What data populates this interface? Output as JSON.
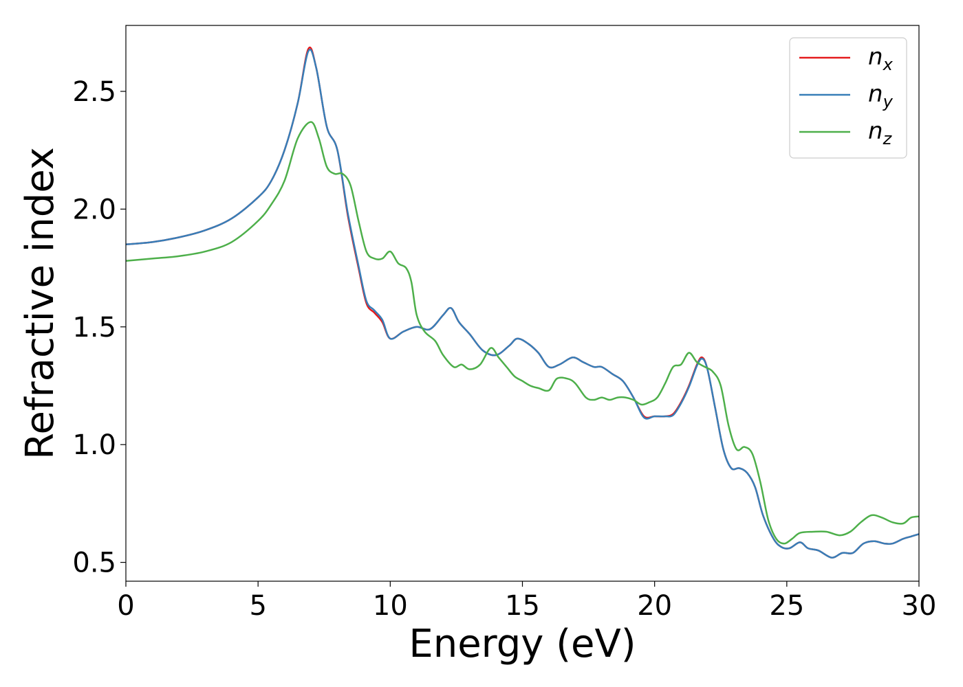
{
  "chart_data": {
    "type": "line",
    "xlabel": "Energy (eV)",
    "ylabel": "Refractive index",
    "xlim": [
      0,
      30
    ],
    "ylim": [
      0.42,
      2.78
    ],
    "xticks": [
      0,
      5,
      10,
      15,
      20,
      25,
      30
    ],
    "xtick_labels": [
      "0",
      "5",
      "10",
      "15",
      "20",
      "25",
      "30"
    ],
    "yticks": [
      0.5,
      1.0,
      1.5,
      2.0,
      2.5
    ],
    "ytick_labels": [
      "0.5",
      "1.0",
      "1.5",
      "2.0",
      "2.5"
    ],
    "grid": false,
    "legend_position": "top-right",
    "series": [
      {
        "name": "n",
        "sub": "x",
        "color": "#e41a1c",
        "x": [
          0,
          1,
          2,
          3,
          4,
          5,
          5.5,
          6,
          6.5,
          6.9,
          7.2,
          7.6,
          8.0,
          8.4,
          8.8,
          9.1,
          9.4,
          9.7,
          10.0,
          10.5,
          11.0,
          11.5,
          12.0,
          12.3,
          12.6,
          13.0,
          13.5,
          14.0,
          14.5,
          14.8,
          15.2,
          15.6,
          16.0,
          16.4,
          16.9,
          17.3,
          17.7,
          18.0,
          18.4,
          18.8,
          19.2,
          19.6,
          20.0,
          20.4,
          20.7,
          21.0,
          21.3,
          21.6,
          21.8,
          22.0,
          22.3,
          22.6,
          22.9,
          23.2,
          23.5,
          23.8,
          24.1,
          24.5,
          24.8,
          25.1,
          25.5,
          25.8,
          26.2,
          26.7,
          27.1,
          27.5,
          27.9,
          28.3,
          28.7,
          29.0,
          29.4,
          29.7,
          30.0
        ],
        "y": [
          1.85,
          1.86,
          1.88,
          1.91,
          1.96,
          2.05,
          2.12,
          2.25,
          2.45,
          2.68,
          2.6,
          2.35,
          2.25,
          1.97,
          1.75,
          1.6,
          1.56,
          1.52,
          1.45,
          1.48,
          1.5,
          1.49,
          1.55,
          1.58,
          1.52,
          1.47,
          1.4,
          1.38,
          1.42,
          1.45,
          1.43,
          1.39,
          1.33,
          1.34,
          1.37,
          1.35,
          1.33,
          1.33,
          1.3,
          1.27,
          1.2,
          1.12,
          1.12,
          1.12,
          1.13,
          1.18,
          1.25,
          1.34,
          1.37,
          1.32,
          1.15,
          0.98,
          0.9,
          0.9,
          0.88,
          0.82,
          0.7,
          0.6,
          0.565,
          0.56,
          0.585,
          0.56,
          0.55,
          0.52,
          0.54,
          0.54,
          0.58,
          0.59,
          0.58,
          0.58,
          0.6,
          0.61,
          0.62
        ]
      },
      {
        "name": "n",
        "sub": "y",
        "color": "#377eb8",
        "x": [
          0,
          1,
          2,
          3,
          4,
          5,
          5.5,
          6,
          6.5,
          6.9,
          7.2,
          7.6,
          8.0,
          8.4,
          8.8,
          9.1,
          9.4,
          9.7,
          10.0,
          10.5,
          11.0,
          11.5,
          12.0,
          12.3,
          12.6,
          13.0,
          13.5,
          14.0,
          14.5,
          14.8,
          15.2,
          15.6,
          16.0,
          16.4,
          16.9,
          17.3,
          17.7,
          18.0,
          18.4,
          18.8,
          19.2,
          19.6,
          20.0,
          20.4,
          20.7,
          21.0,
          21.3,
          21.6,
          21.8,
          22.0,
          22.3,
          22.6,
          22.9,
          23.2,
          23.5,
          23.8,
          24.1,
          24.5,
          24.8,
          25.1,
          25.5,
          25.8,
          26.2,
          26.7,
          27.1,
          27.5,
          27.9,
          28.3,
          28.7,
          29.0,
          29.4,
          29.7,
          30.0
        ],
        "y": [
          1.85,
          1.86,
          1.88,
          1.91,
          1.96,
          2.05,
          2.12,
          2.25,
          2.45,
          2.67,
          2.6,
          2.35,
          2.25,
          1.98,
          1.76,
          1.61,
          1.57,
          1.53,
          1.45,
          1.48,
          1.5,
          1.49,
          1.55,
          1.58,
          1.52,
          1.47,
          1.4,
          1.38,
          1.42,
          1.45,
          1.43,
          1.39,
          1.33,
          1.34,
          1.37,
          1.35,
          1.33,
          1.33,
          1.3,
          1.27,
          1.2,
          1.115,
          1.12,
          1.12,
          1.125,
          1.175,
          1.245,
          1.335,
          1.365,
          1.32,
          1.15,
          0.98,
          0.9,
          0.9,
          0.88,
          0.82,
          0.7,
          0.6,
          0.565,
          0.56,
          0.585,
          0.56,
          0.55,
          0.52,
          0.54,
          0.54,
          0.58,
          0.59,
          0.58,
          0.58,
          0.6,
          0.61,
          0.62
        ]
      },
      {
        "name": "n",
        "sub": "z",
        "color": "#4daf4a",
        "x": [
          0,
          1,
          2,
          3,
          4,
          5,
          5.5,
          6,
          6.5,
          7.0,
          7.3,
          7.6,
          7.9,
          8.2,
          8.5,
          8.8,
          9.1,
          9.4,
          9.7,
          10.0,
          10.3,
          10.6,
          10.8,
          11.0,
          11.3,
          11.7,
          12.0,
          12.4,
          12.7,
          13.0,
          13.4,
          13.8,
          14.1,
          14.4,
          14.7,
          15.0,
          15.3,
          15.6,
          16.0,
          16.3,
          16.7,
          17.0,
          17.4,
          17.7,
          18.0,
          18.3,
          18.6,
          18.9,
          19.2,
          19.5,
          19.8,
          20.1,
          20.4,
          20.7,
          21.0,
          21.3,
          21.6,
          21.9,
          22.2,
          22.5,
          22.8,
          23.1,
          23.4,
          23.7,
          24.0,
          24.3,
          24.6,
          24.9,
          25.2,
          25.5,
          26.0,
          26.5,
          27.0,
          27.4,
          27.8,
          28.2,
          28.6,
          29.0,
          29.4,
          29.7,
          30.0
        ],
        "y": [
          1.78,
          1.79,
          1.8,
          1.82,
          1.86,
          1.95,
          2.02,
          2.12,
          2.3,
          2.37,
          2.3,
          2.18,
          2.15,
          2.15,
          2.1,
          1.95,
          1.82,
          1.79,
          1.79,
          1.82,
          1.77,
          1.75,
          1.69,
          1.55,
          1.48,
          1.44,
          1.38,
          1.33,
          1.34,
          1.32,
          1.34,
          1.41,
          1.37,
          1.33,
          1.29,
          1.27,
          1.25,
          1.24,
          1.23,
          1.28,
          1.28,
          1.26,
          1.2,
          1.19,
          1.2,
          1.19,
          1.2,
          1.2,
          1.19,
          1.17,
          1.18,
          1.2,
          1.26,
          1.33,
          1.34,
          1.39,
          1.35,
          1.33,
          1.31,
          1.25,
          1.08,
          0.98,
          0.99,
          0.96,
          0.84,
          0.68,
          0.6,
          0.58,
          0.6,
          0.625,
          0.63,
          0.63,
          0.615,
          0.63,
          0.67,
          0.7,
          0.69,
          0.67,
          0.665,
          0.69,
          0.695
        ]
      }
    ]
  }
}
